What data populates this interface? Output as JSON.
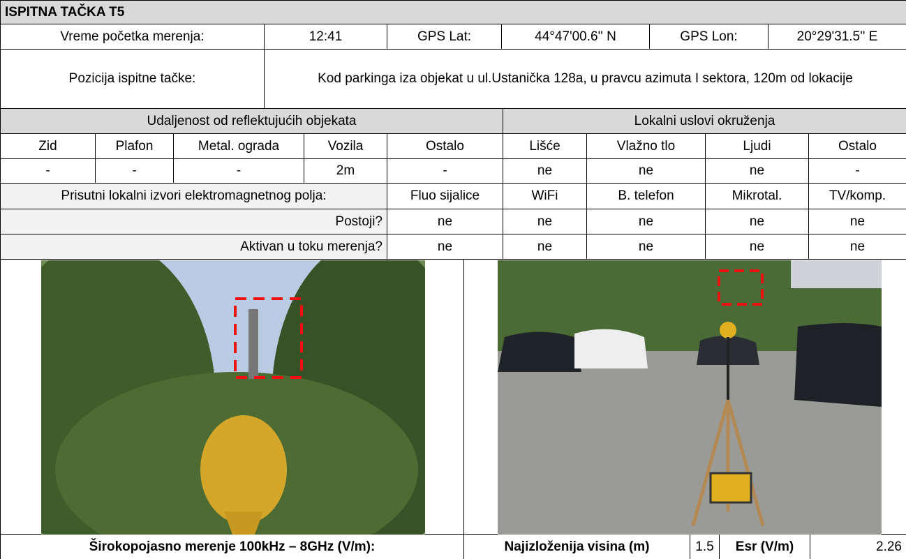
{
  "title": "ISPITNA TAČKA T5",
  "measurement": {
    "start_time_label": "Vreme početka merenja:",
    "start_time": "12:41",
    "gps_lat_label": "GPS Lat:",
    "gps_lat": "44°47'00.6'' N",
    "gps_lon_label": "GPS Lon:",
    "gps_lon": "20°29'31.5'' E"
  },
  "position": {
    "label": "Pozicija ispitne tačke:",
    "text": "Kod parkinga iza objekat u ul.Ustanička 128a, u pravcu azimuta I sektora, 120m od lokacije"
  },
  "reflective_objects": {
    "heading": "Udaljenost od reflektujućih objekata",
    "columns": [
      "Zid",
      "Plafon",
      "Metal. ograda",
      "Vozila",
      "Ostalo"
    ],
    "values": [
      "-",
      "-",
      "-",
      "2m",
      "-"
    ]
  },
  "local_conditions": {
    "heading": "Lokalni uslovi okruženja",
    "columns": [
      "Lišće",
      "Vlažno tlo",
      "Ljudi",
      "Ostalo"
    ],
    "values": [
      "ne",
      "ne",
      "ne",
      "-"
    ]
  },
  "em_sources": {
    "heading": "Prisutni lokalni izvori elektromagnetnog polja:",
    "columns": [
      "Fluo sijalice",
      "WiFi",
      "B. telefon",
      "Mikrotal.",
      "TV/komp."
    ],
    "rows": [
      {
        "label": "Postoji?",
        "values": [
          "ne",
          "ne",
          "ne",
          "ne",
          "ne"
        ]
      },
      {
        "label": "Aktivan u toku merenja?",
        "values": [
          "ne",
          "ne",
          "ne",
          "ne",
          "ne"
        ]
      }
    ]
  },
  "results": {
    "broadband_label": "Širokopojasno merenje 100kHz – 8GHz (V/m):",
    "height_label": "Najizloženija visina (m)",
    "height": 1.5,
    "esr_label": "Esr (V/m)",
    "esr": 2.26
  }
}
